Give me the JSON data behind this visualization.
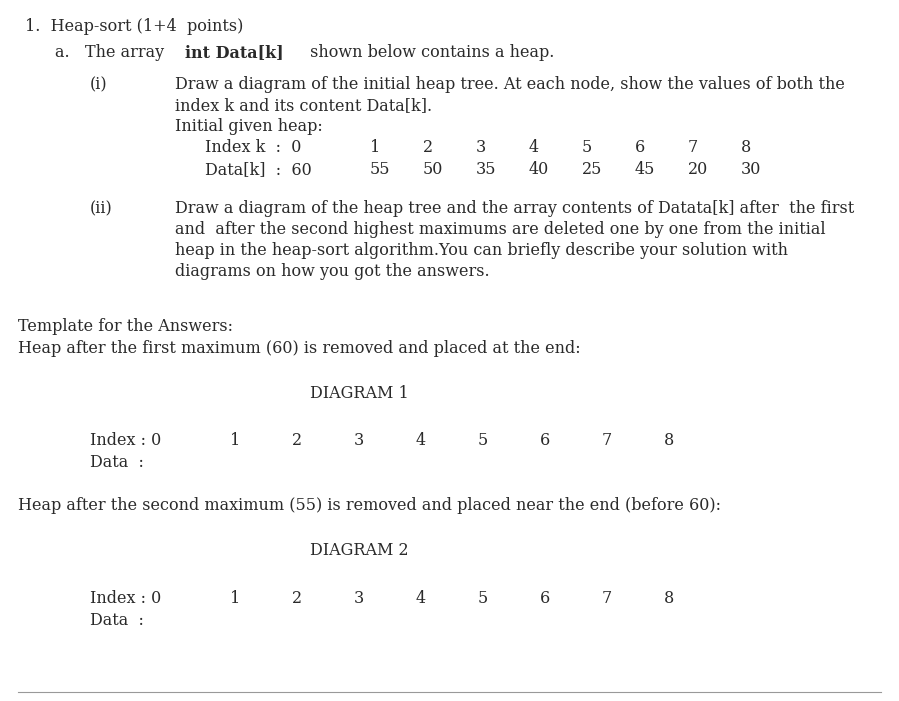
{
  "bg_color": "#ffffff",
  "text_color": "#2a2a2a",
  "font_family": "DejaVu Serif",
  "body_fontsize": 11.5,
  "small_fontsize": 11.5,
  "title": "1.  Heap-sort (1+4  points)",
  "line_a_pre": "a.   The array ",
  "line_a_bold": "int Data[k]",
  "line_a_post": " shown below contains a heap.",
  "i_label": "(i)",
  "i_text1": "Draw a diagram of the initial heap tree. At each node, show the values of both the",
  "i_text2": "index k and its content Data[k].",
  "i_text3": "Initial given heap:",
  "index_row_label": "Index k  :  0",
  "index_vals": [
    "1",
    "2",
    "3",
    "4",
    "5",
    "6",
    "7",
    "8"
  ],
  "data_row_label": "Data[k]  :  60",
  "data_vals": [
    "55",
    "50",
    "35",
    "40",
    "25",
    "45",
    "20",
    "30"
  ],
  "ii_label": "(ii)",
  "ii_text1": "Draw a diagram of the heap tree and the array contents of Datata[k] after  the first",
  "ii_text2": "and  after the second highest maximums are deleted one by one from the initial",
  "ii_text3": "heap in the heap-sort algorithm.You can briefly describe your solution with",
  "ii_text4": "diagrams on how you got the answers.",
  "template1": "Template for the Answers:",
  "template2": "Heap after the first maximum (60) is removed and placed at the end:",
  "diag1_label": "DIAGRAM 1",
  "diag_index_vals": [
    "0",
    "1",
    "2",
    "3",
    "4",
    "5",
    "6",
    "7",
    "8"
  ],
  "diag_index_label": "Index : ",
  "diag_data_label": "Data  : ",
  "template3": "Heap after the second maximum (55) is removed and placed near the end (before 60):",
  "diag2_label": "DIAGRAM 2",
  "bottom_line_color": "#999999"
}
